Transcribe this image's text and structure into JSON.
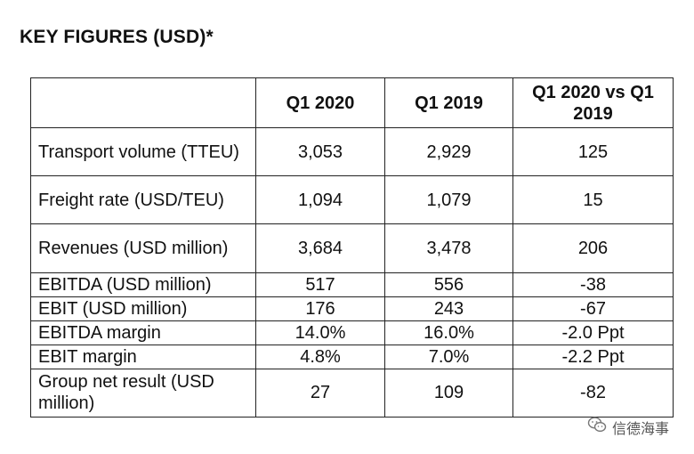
{
  "title": "KEY FIGURES (USD)*",
  "table": {
    "headers": [
      "",
      "Q1 2020",
      "Q1 2019",
      "Q1 2020 vs Q1 2019"
    ],
    "rows": [
      {
        "metric": "Transport volume (TTEU)",
        "q1_2020": "3,053",
        "q1_2019": "2,929",
        "change": "125"
      },
      {
        "metric": "Freight rate (USD/TEU)",
        "q1_2020": "1,094",
        "q1_2019": "1,079",
        "change": "15"
      },
      {
        "metric": "Revenues (USD million)",
        "q1_2020": "3,684",
        "q1_2019": "3,478",
        "change": "206"
      },
      {
        "metric": "EBITDA (USD million)",
        "q1_2020": "517",
        "q1_2019": "556",
        "change": "-38"
      },
      {
        "metric": "EBIT (USD million)",
        "q1_2020": "176",
        "q1_2019": "243",
        "change": "-67"
      },
      {
        "metric": "EBITDA margin",
        "q1_2020": "14.0%",
        "q1_2019": "16.0%",
        "change": "-2.0 Ppt"
      },
      {
        "metric": "EBIT margin",
        "q1_2020": "4.8%",
        "q1_2019": "7.0%",
        "change": "-2.2 Ppt"
      },
      {
        "metric": "Group net result (USD million)",
        "q1_2020": "27",
        "q1_2019": "109",
        "change": "-82"
      }
    ]
  },
  "watermark": {
    "text": "信德海事",
    "icon": "wechat-icon"
  }
}
